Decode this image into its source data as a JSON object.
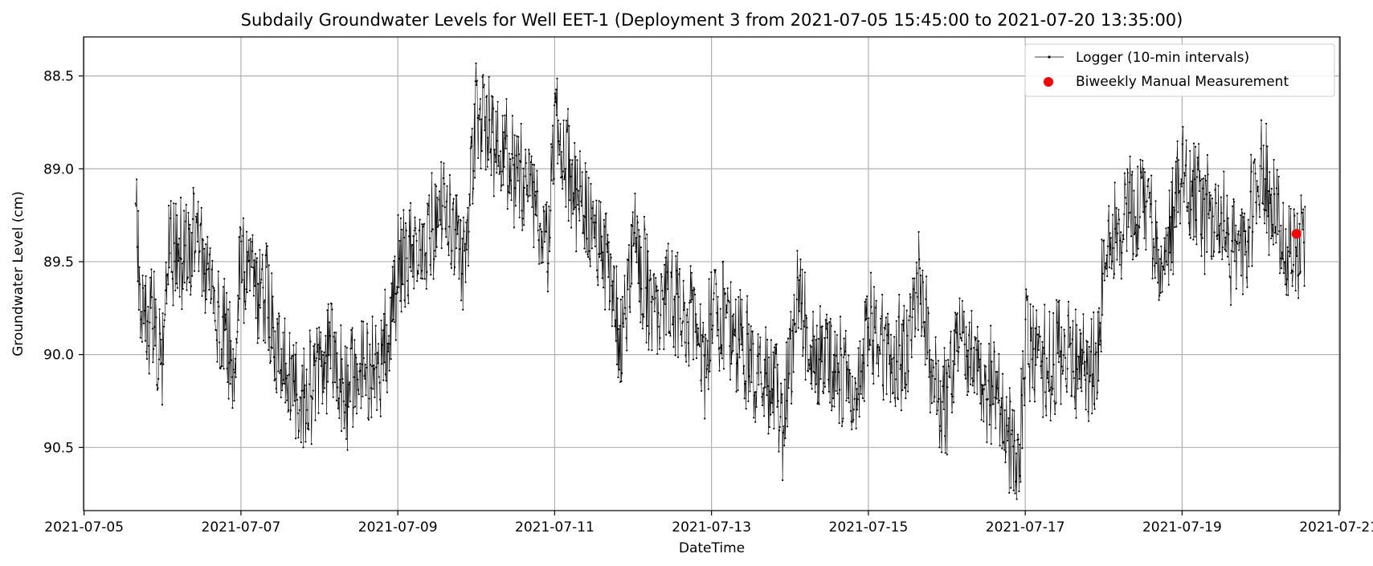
{
  "chart_data": {
    "type": "line",
    "title": "Subdaily Groundwater Levels for Well EET-1 (Deployment 3 from 2021-07-05 15:45:00 to 2021-07-20 13:35:00)",
    "xlabel": "DateTime",
    "ylabel": "Groundwater Level (cm)",
    "x_range": [
      "2021-07-04T23:50:00",
      "2021-07-21T00:20:00"
    ],
    "y_range": [
      88.29,
      90.84
    ],
    "y_inverted": true,
    "grid": true,
    "legend_position": "upper right",
    "x_ticks": [
      "2021-07-05",
      "2021-07-07",
      "2021-07-09",
      "2021-07-11",
      "2021-07-13",
      "2021-07-15",
      "2021-07-17",
      "2021-07-19",
      "2021-07-21"
    ],
    "y_ticks": [
      88.5,
      89.0,
      89.5,
      90.0,
      90.5
    ],
    "series": [
      {
        "name": "Logger (10-min intervals)",
        "style": "line-with-point-markers",
        "color": "#000000",
        "interval_minutes": 10,
        "anchors": [
          [
            "2021-07-05T15:45:00",
            88.97
          ],
          [
            "2021-07-05T17:00:00",
            89.75
          ],
          [
            "2021-07-05T21:00:00",
            89.82
          ],
          [
            "2021-07-06T00:00:00",
            90.05
          ],
          [
            "2021-07-06T02:00:00",
            89.4
          ],
          [
            "2021-07-06T06:00:00",
            89.5
          ],
          [
            "2021-07-06T10:00:00",
            89.35
          ],
          [
            "2021-07-06T14:00:00",
            89.6
          ],
          [
            "2021-07-06T18:00:00",
            89.8
          ],
          [
            "2021-07-06T22:00:00",
            90.1
          ],
          [
            "2021-07-07T00:00:00",
            89.45
          ],
          [
            "2021-07-07T04:00:00",
            89.6
          ],
          [
            "2021-07-07T08:00:00",
            89.75
          ],
          [
            "2021-07-07T12:00:00",
            90.05
          ],
          [
            "2021-07-07T18:00:00",
            90.25
          ],
          [
            "2021-07-08T00:00:00",
            90.1
          ],
          [
            "2021-07-08T04:00:00",
            89.95
          ],
          [
            "2021-07-08T08:00:00",
            90.25
          ],
          [
            "2021-07-08T12:00:00",
            90.05
          ],
          [
            "2021-07-08T18:00:00",
            90.1
          ],
          [
            "2021-07-08T22:00:00",
            89.85
          ],
          [
            "2021-07-09T00:00:00",
            89.5
          ],
          [
            "2021-07-09T06:00:00",
            89.45
          ],
          [
            "2021-07-09T12:00:00",
            89.3
          ],
          [
            "2021-07-09T16:00:00",
            89.2
          ],
          [
            "2021-07-09T20:00:00",
            89.55
          ],
          [
            "2021-07-10T00:00:00",
            88.75
          ],
          [
            "2021-07-10T06:00:00",
            88.85
          ],
          [
            "2021-07-10T12:00:00",
            89.05
          ],
          [
            "2021-07-10T18:00:00",
            89.1
          ],
          [
            "2021-07-10T22:00:00",
            89.5
          ],
          [
            "2021-07-11T00:00:00",
            88.75
          ],
          [
            "2021-07-11T04:00:00",
            89.0
          ],
          [
            "2021-07-11T10:00:00",
            89.25
          ],
          [
            "2021-07-11T16:00:00",
            89.5
          ],
          [
            "2021-07-11T20:00:00",
            90.0
          ],
          [
            "2021-07-12T00:00:00",
            89.4
          ],
          [
            "2021-07-12T06:00:00",
            89.75
          ],
          [
            "2021-07-12T12:00:00",
            89.7
          ],
          [
            "2021-07-12T18:00:00",
            89.8
          ],
          [
            "2021-07-12T22:00:00",
            90.05
          ],
          [
            "2021-07-13T00:00:00",
            89.75
          ],
          [
            "2021-07-13T06:00:00",
            89.85
          ],
          [
            "2021-07-13T12:00:00",
            90.05
          ],
          [
            "2021-07-13T18:00:00",
            90.15
          ],
          [
            "2021-07-13T22:00:00",
            90.4
          ],
          [
            "2021-07-14T02:00:00",
            89.7
          ],
          [
            "2021-07-14T08:00:00",
            90.05
          ],
          [
            "2021-07-14T14:00:00",
            90.05
          ],
          [
            "2021-07-14T20:00:00",
            90.25
          ],
          [
            "2021-07-15T00:00:00",
            89.85
          ],
          [
            "2021-07-15T06:00:00",
            90.05
          ],
          [
            "2021-07-15T12:00:00",
            89.95
          ],
          [
            "2021-07-15T16:00:00",
            89.6
          ],
          [
            "2021-07-15T20:00:00",
            90.2
          ],
          [
            "2021-07-16T00:00:00",
            90.3
          ],
          [
            "2021-07-16T04:00:00",
            89.8
          ],
          [
            "2021-07-16T08:00:00",
            90.05
          ],
          [
            "2021-07-16T14:00:00",
            90.2
          ],
          [
            "2021-07-16T18:00:00",
            90.4
          ],
          [
            "2021-07-16T22:00:00",
            90.6
          ],
          [
            "2021-07-17T00:00:00",
            89.9
          ],
          [
            "2021-07-17T06:00:00",
            90.05
          ],
          [
            "2021-07-17T12:00:00",
            90.0
          ],
          [
            "2021-07-17T18:00:00",
            90.1
          ],
          [
            "2021-07-17T22:00:00",
            90.1
          ],
          [
            "2021-07-18T00:00:00",
            89.45
          ],
          [
            "2021-07-18T06:00:00",
            89.3
          ],
          [
            "2021-07-18T12:00:00",
            89.15
          ],
          [
            "2021-07-18T18:00:00",
            89.55
          ],
          [
            "2021-07-19T00:00:00",
            89.05
          ],
          [
            "2021-07-19T06:00:00",
            89.2
          ],
          [
            "2021-07-19T12:00:00",
            89.35
          ],
          [
            "2021-07-19T18:00:00",
            89.45
          ],
          [
            "2021-07-20T00:00:00",
            89.0
          ],
          [
            "2021-07-20T06:00:00",
            89.3
          ],
          [
            "2021-07-20T09:00:00",
            89.4
          ],
          [
            "2021-07-20T13:35:00",
            89.4
          ]
        ]
      },
      {
        "name": "Biweekly Manual Measurement",
        "style": "scatter",
        "color": "#ff0000",
        "points": [
          [
            "2021-07-20T11:00:00",
            89.35
          ]
        ]
      }
    ]
  }
}
